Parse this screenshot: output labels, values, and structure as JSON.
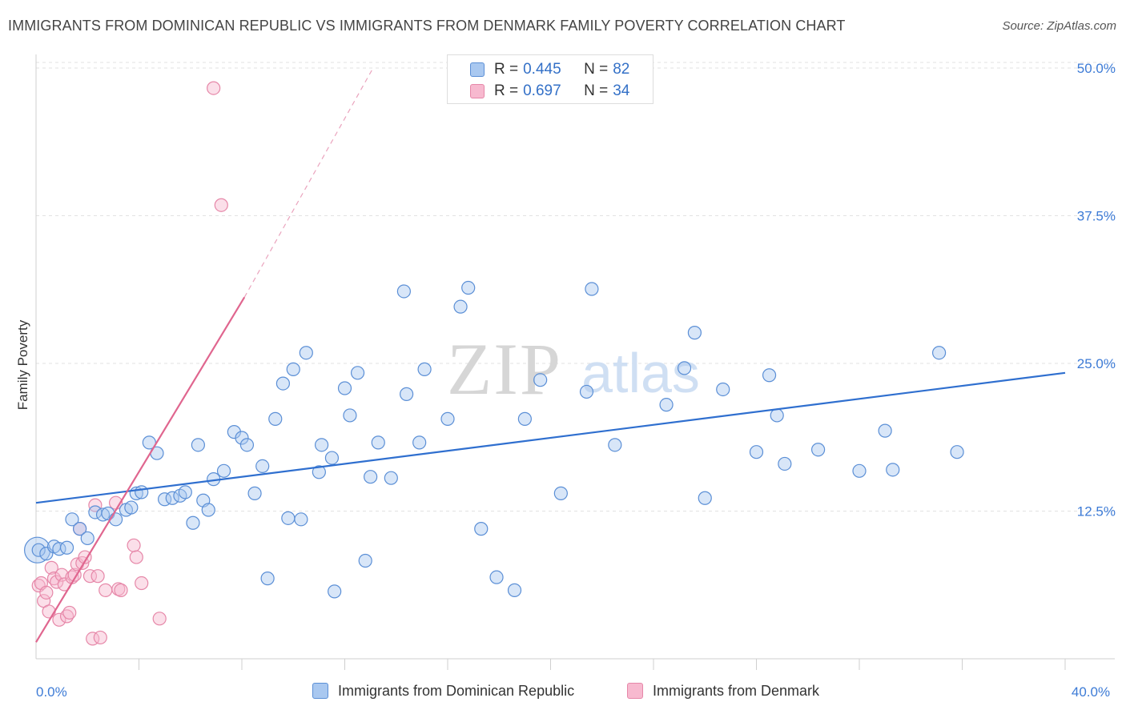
{
  "title": "IMMIGRANTS FROM DOMINICAN REPUBLIC VS IMMIGRANTS FROM DENMARK FAMILY POVERTY CORRELATION CHART",
  "source": "Source: ZipAtlas.com",
  "watermark": {
    "zip": "ZIP",
    "atlas": "atlas"
  },
  "legend_top": {
    "r_label": "R =",
    "n_label": "N =",
    "rows": [
      {
        "r": "0.445",
        "n": "82"
      },
      {
        "r": "0.697",
        "n": "34"
      }
    ]
  },
  "colors": {
    "blue_fill": "#a9c8f0",
    "blue_stroke": "#5b8fd6",
    "blue_line": "#2f6fcf",
    "pink_fill": "#f7b9cf",
    "pink_stroke": "#e687a8",
    "pink_line": "#e0668f",
    "tick_label": "#3d7bd6",
    "grid": "#e2e2e2"
  },
  "chart_data": {
    "type": "scatter",
    "title": "IMMIGRANTS FROM DOMINICAN REPUBLIC VS IMMIGRANTS FROM DENMARK FAMILY POVERTY CORRELATION CHART",
    "xlabel": "",
    "ylabel": "Family Poverty",
    "xlim": [
      0,
      40
    ],
    "ylim": [
      0,
      50
    ],
    "x_tick_labels": [
      {
        "value": 0,
        "label": "0.0%"
      },
      {
        "value": 40,
        "label": "40.0%"
      }
    ],
    "y_tick_labels": [
      {
        "value": 12.5,
        "label": "12.5%"
      },
      {
        "value": 25.0,
        "label": "25.0%"
      },
      {
        "value": 37.5,
        "label": "37.5%"
      },
      {
        "value": 50.0,
        "label": "50.0%"
      }
    ],
    "x_minor_ticks": [
      4,
      8,
      12,
      16,
      20,
      24,
      28,
      32,
      36,
      40
    ],
    "grid": true,
    "series": [
      {
        "name": "Immigrants from Dominican Republic",
        "color": "blue",
        "R": 0.445,
        "N": 82,
        "trend": {
          "x": [
            0,
            40
          ],
          "y": [
            13.2,
            24.2
          ],
          "dashed_extension": false
        },
        "points": [
          [
            0.1,
            9.2
          ],
          [
            0.4,
            8.9
          ],
          [
            0.7,
            9.5
          ],
          [
            0.9,
            9.3
          ],
          [
            1.2,
            9.4
          ],
          [
            1.4,
            11.8
          ],
          [
            1.7,
            11.0
          ],
          [
            2.0,
            10.2
          ],
          [
            2.3,
            12.4
          ],
          [
            2.6,
            12.2
          ],
          [
            2.8,
            12.3
          ],
          [
            3.1,
            11.8
          ],
          [
            3.5,
            12.6
          ],
          [
            3.7,
            12.8
          ],
          [
            3.9,
            14.0
          ],
          [
            4.1,
            14.1
          ],
          [
            4.4,
            18.3
          ],
          [
            4.7,
            17.4
          ],
          [
            5.0,
            13.5
          ],
          [
            5.3,
            13.6
          ],
          [
            5.6,
            13.8
          ],
          [
            5.8,
            14.1
          ],
          [
            6.1,
            11.5
          ],
          [
            6.3,
            18.1
          ],
          [
            6.5,
            13.4
          ],
          [
            6.7,
            12.6
          ],
          [
            6.9,
            15.2
          ],
          [
            7.3,
            15.9
          ],
          [
            7.7,
            19.2
          ],
          [
            8.0,
            18.7
          ],
          [
            8.2,
            18.1
          ],
          [
            8.5,
            14.0
          ],
          [
            8.8,
            16.3
          ],
          [
            9.0,
            6.8
          ],
          [
            9.3,
            20.3
          ],
          [
            9.6,
            23.3
          ],
          [
            9.8,
            11.9
          ],
          [
            10.0,
            24.5
          ],
          [
            10.3,
            11.8
          ],
          [
            10.5,
            25.9
          ],
          [
            11.0,
            15.8
          ],
          [
            11.1,
            18.1
          ],
          [
            11.5,
            17.0
          ],
          [
            11.6,
            5.7
          ],
          [
            12.0,
            22.9
          ],
          [
            12.2,
            20.6
          ],
          [
            12.5,
            24.2
          ],
          [
            12.8,
            8.3
          ],
          [
            13.0,
            15.4
          ],
          [
            13.3,
            18.3
          ],
          [
            13.8,
            15.3
          ],
          [
            14.3,
            31.1
          ],
          [
            14.4,
            22.4
          ],
          [
            14.9,
            18.3
          ],
          [
            15.1,
            24.5
          ],
          [
            16.0,
            20.3
          ],
          [
            16.5,
            29.8
          ],
          [
            16.8,
            31.4
          ],
          [
            17.3,
            11.0
          ],
          [
            17.9,
            6.9
          ],
          [
            18.6,
            5.8
          ],
          [
            19.0,
            20.3
          ],
          [
            19.6,
            23.6
          ],
          [
            20.4,
            14.0
          ],
          [
            21.4,
            22.6
          ],
          [
            21.6,
            31.3
          ],
          [
            22.5,
            18.1
          ],
          [
            24.5,
            21.5
          ],
          [
            25.2,
            24.6
          ],
          [
            25.6,
            27.6
          ],
          [
            26.0,
            13.6
          ],
          [
            26.7,
            22.8
          ],
          [
            28.0,
            17.5
          ],
          [
            28.5,
            24.0
          ],
          [
            28.8,
            20.6
          ],
          [
            29.1,
            16.5
          ],
          [
            30.4,
            17.7
          ],
          [
            32.0,
            15.9
          ],
          [
            33.0,
            19.3
          ],
          [
            33.3,
            16.0
          ],
          [
            35.1,
            25.9
          ],
          [
            35.8,
            17.5
          ]
        ]
      },
      {
        "name": "Immigrants from Denmark",
        "color": "pink",
        "R": 0.697,
        "N": 34,
        "trend": {
          "x": [
            0,
            8.1
          ],
          "y": [
            1.4,
            30.6
          ],
          "dashed_to": [
            13.1,
            50.0
          ]
        },
        "points": [
          [
            0.1,
            6.2
          ],
          [
            0.2,
            6.4
          ],
          [
            0.3,
            4.9
          ],
          [
            0.4,
            5.6
          ],
          [
            0.5,
            4.0
          ],
          [
            0.6,
            7.7
          ],
          [
            0.7,
            6.8
          ],
          [
            0.8,
            6.5
          ],
          [
            0.9,
            3.3
          ],
          [
            1.0,
            7.1
          ],
          [
            1.1,
            6.3
          ],
          [
            1.2,
            3.6
          ],
          [
            1.3,
            3.9
          ],
          [
            1.4,
            6.9
          ],
          [
            1.5,
            7.1
          ],
          [
            1.6,
            8.0
          ],
          [
            1.7,
            11.0
          ],
          [
            1.8,
            8.1
          ],
          [
            1.9,
            8.6
          ],
          [
            2.1,
            7.0
          ],
          [
            2.2,
            1.7
          ],
          [
            2.3,
            13.0
          ],
          [
            2.4,
            7.0
          ],
          [
            2.5,
            1.8
          ],
          [
            2.7,
            5.8
          ],
          [
            3.1,
            13.2
          ],
          [
            3.2,
            5.9
          ],
          [
            3.3,
            5.8
          ],
          [
            3.8,
            9.6
          ],
          [
            3.9,
            8.6
          ],
          [
            4.1,
            6.4
          ],
          [
            4.8,
            3.4
          ],
          [
            6.9,
            48.3
          ],
          [
            7.2,
            38.4
          ]
        ]
      }
    ]
  },
  "legend_bottom": [
    {
      "label": "Immigrants from Dominican Republic"
    },
    {
      "label": "Immigrants from Denmark"
    }
  ]
}
